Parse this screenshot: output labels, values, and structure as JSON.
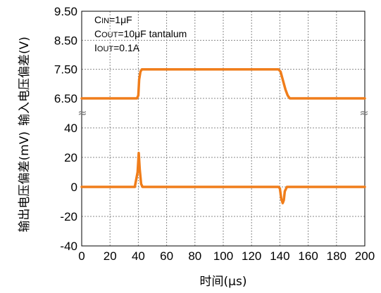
{
  "chart_data": {
    "type": "line",
    "title": "",
    "xlabel": "时间(μs)",
    "ylabel_top": "输入电压偏差(V)",
    "ylabel_bottom": "输出电压偏差(mV)",
    "xlim": [
      0,
      200
    ],
    "x_ticks": [
      "0",
      "20",
      "40",
      "60",
      "80",
      "100",
      "120",
      "140",
      "160",
      "180",
      "200"
    ],
    "grid": true,
    "upper_axis": {
      "ylim": [
        6.5,
        9.5
      ],
      "ticks": [
        "9.50",
        "8.50",
        "7.50",
        "6.50"
      ],
      "tick_values": [
        9.5,
        8.5,
        7.5,
        6.5
      ]
    },
    "lower_axis": {
      "ylim": [
        -40,
        40
      ],
      "ticks": [
        "40",
        "20",
        "0",
        "-20",
        "-40"
      ],
      "tick_values": [
        40,
        20,
        0,
        -20,
        -40
      ]
    },
    "legend": {
      "placement": "top-left",
      "lines": [
        [
          {
            "t": "C"
          },
          {
            "t": "IN",
            "small": true
          },
          {
            "t": "=1μF"
          }
        ],
        [
          {
            "t": "C"
          },
          {
            "t": "OUT",
            "small": true
          },
          {
            "t": "=10μF tantalum"
          }
        ],
        [
          {
            "t": "I"
          },
          {
            "t": "OUT",
            "small": true
          },
          {
            "t": "=0.1A"
          }
        ]
      ]
    },
    "series": [
      {
        "axis": "upper",
        "color": "#F07D1A",
        "x": [
          0,
          39,
          40,
          40.6,
          41.5,
          42.5,
          139,
          140.5,
          142,
          144,
          145.5,
          147,
          200
        ],
        "y": [
          6.5,
          6.5,
          6.6,
          7.15,
          7.42,
          7.5,
          7.5,
          7.42,
          7.15,
          6.8,
          6.6,
          6.5,
          6.5
        ]
      },
      {
        "axis": "lower",
        "color": "#F07D1A",
        "x": [
          0,
          37.5,
          39.5,
          40.3,
          41,
          42,
          43,
          139,
          140,
          141,
          142,
          142.8,
          143.5,
          145,
          200
        ],
        "y": [
          0,
          0,
          10,
          23,
          12,
          2,
          0,
          0,
          -1,
          -8,
          -11,
          -9,
          -3,
          0,
          0
        ]
      }
    ],
    "break_marks": "≈"
  }
}
